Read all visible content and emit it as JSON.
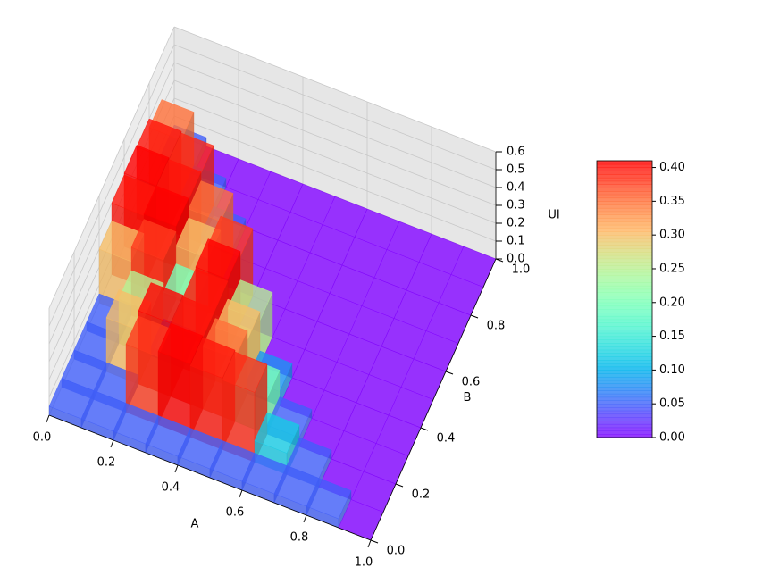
{
  "chart_data": {
    "type": "surface3d",
    "xlabel": "A",
    "ylabel": "B",
    "zlabel": "UI",
    "x": [
      0.05,
      0.15,
      0.25,
      0.35,
      0.45,
      0.55,
      0.65,
      0.75,
      0.85,
      0.95
    ],
    "y": [
      0.05,
      0.15,
      0.25,
      0.35,
      0.45,
      0.55,
      0.65,
      0.75,
      0.85,
      0.95
    ],
    "z": [
      [
        0.05,
        0.05,
        0.05,
        0.05,
        0.05,
        0.05,
        0.05,
        0.05,
        0.05,
        0
      ],
      [
        0.05,
        0.05,
        0.38,
        0.41,
        0.4,
        0.39,
        0.12,
        0.05,
        0,
        0
      ],
      [
        0.05,
        0.3,
        0.41,
        0.4,
        0.35,
        0.2,
        0.05,
        0,
        0,
        0
      ],
      [
        0.05,
        0.25,
        0.05,
        0.4,
        0.3,
        0.08,
        0,
        0,
        0,
        0
      ],
      [
        0.3,
        0.38,
        0.2,
        0.41,
        0.25,
        0,
        0,
        0,
        0,
        0
      ],
      [
        0.4,
        0.41,
        0.3,
        0.38,
        0,
        0,
        0,
        0,
        0,
        0
      ],
      [
        0.41,
        0.4,
        0.35,
        0,
        0,
        0,
        0,
        0,
        0,
        0
      ],
      [
        0.4,
        0.39,
        0.05,
        0,
        0,
        0,
        0,
        0,
        0,
        0
      ],
      [
        0.35,
        0.05,
        0,
        0,
        0,
        0,
        0,
        0,
        0,
        0
      ],
      [
        0.05,
        0,
        0,
        0,
        0,
        0,
        0,
        0,
        0,
        0
      ]
    ],
    "xlim": [
      0,
      1
    ],
    "ylim": [
      0,
      1
    ],
    "zlim": [
      0,
      0.6
    ],
    "xticks": [
      {
        "value": 0,
        "label": "0.0"
      },
      0.2,
      0.4,
      0.6,
      0.8,
      {
        "value": 1,
        "label": "1.0"
      }
    ],
    "yticks": [
      {
        "value": 0,
        "label": "0.0"
      },
      0.2,
      0.4,
      0.6,
      0.8,
      {
        "value": 1,
        "label": "1.0"
      }
    ],
    "zticks": [
      {
        "value": 0,
        "label": "0.0"
      },
      0.1,
      0.2,
      0.3,
      0.4,
      0.5,
      0.6
    ],
    "colormap": "rainbow",
    "clim": [
      0,
      0.41
    ],
    "colorbar_ticks": [
      {
        "value": 0,
        "label": "0.00"
      },
      {
        "value": 0.05,
        "label": "0.05"
      },
      {
        "value": 0.1,
        "label": "0.10"
      },
      {
        "value": 0.15,
        "label": "0.15"
      },
      {
        "value": 0.2,
        "label": "0.20"
      },
      {
        "value": 0.25,
        "label": "0.25"
      },
      {
        "value": 0.3,
        "label": "0.30"
      },
      {
        "value": 0.35,
        "label": "0.35"
      },
      {
        "value": 0.4,
        "label": "0.40"
      }
    ]
  }
}
